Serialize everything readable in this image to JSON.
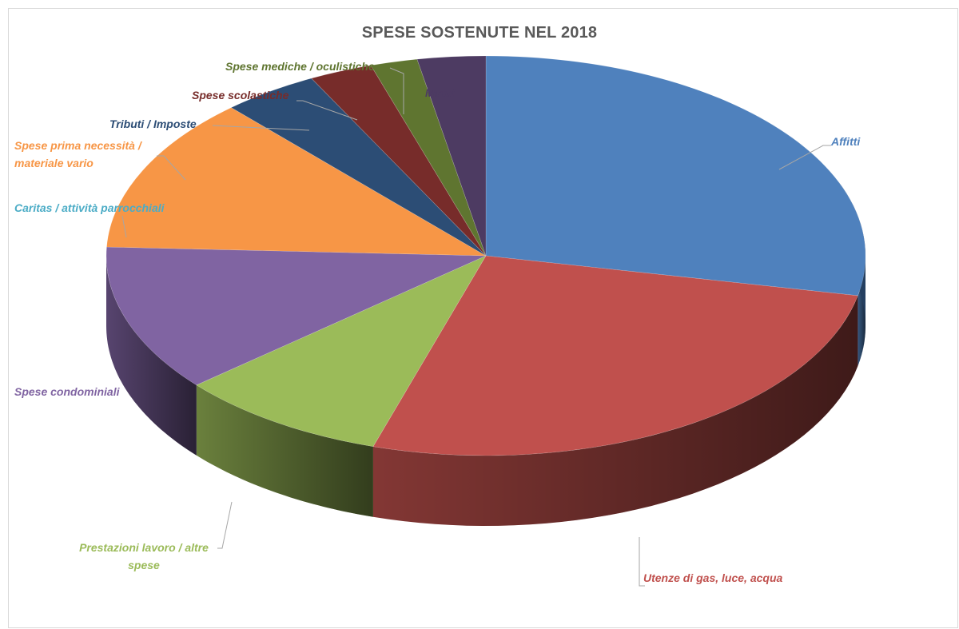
{
  "chart_data": {
    "type": "pie",
    "title": "SPESE SOSTENUTE NEL 2018",
    "three_d": true,
    "legend": "none",
    "slices": [
      {
        "label": "Affitti",
        "value": 28.2,
        "color": "#4F81BD"
      },
      {
        "label": "Utenze di gas, luce, acqua",
        "value": 26.6,
        "color": "#C0504D"
      },
      {
        "label": "Prestazioni lavoro / altre spese",
        "value": 9.0,
        "color": "#9BBB59"
      },
      {
        "label": "Spese condominiali",
        "value": 11.9,
        "color": "#8064A2"
      },
      {
        "label": "Caritas / attività parrocchiali",
        "value": 0.0,
        "color": "#4BACC6"
      },
      {
        "label": "Spese prima necessità / materiale vario",
        "value": 12.6,
        "color": "#F79646"
      },
      {
        "label": "Tributi / Imposte",
        "value": 4.1,
        "color": "#2C4D75"
      },
      {
        "label": "Spese scolastiche",
        "value": 2.7,
        "color": "#772C2A"
      },
      {
        "label": "Spese mediche / oculistiche",
        "value": 2.0,
        "color": "#5F7530"
      },
      {
        "label": "Mutui",
        "value": 2.9,
        "color": "#4D3B62"
      }
    ]
  }
}
